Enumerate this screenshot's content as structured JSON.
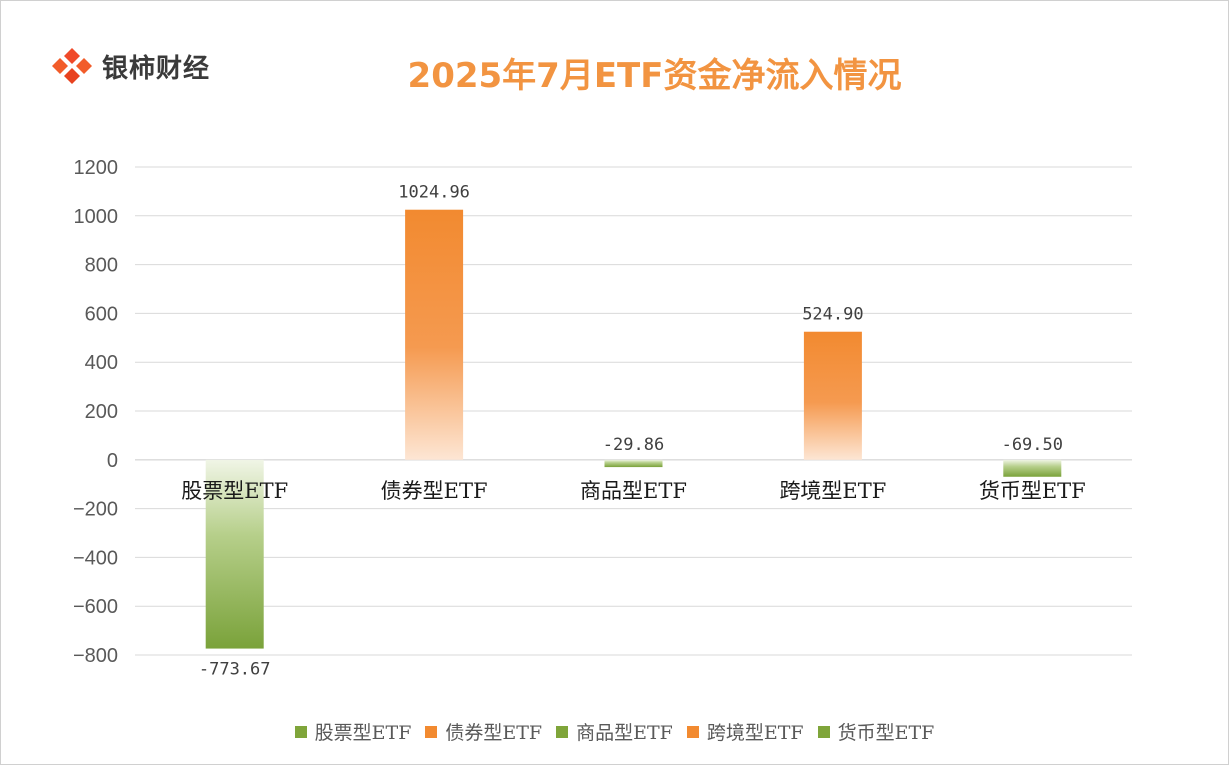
{
  "brand": {
    "name": "银柿财经"
  },
  "colors": {
    "positive": "#f28a30",
    "negative": "#7fa53a",
    "grid": "#d9d9d9",
    "title": "#f29441"
  },
  "chart_data": {
    "type": "bar",
    "title": "2025年7月ETF资金净流入情况",
    "categories": [
      "股票型ETF",
      "债券型ETF",
      "商品型ETF",
      "跨境型ETF",
      "货币型ETF"
    ],
    "values": [
      -773.67,
      1024.96,
      -29.86,
      524.9,
      -69.5
    ],
    "data_labels": [
      "-773.67",
      "1024.96",
      "-29.86",
      "524.90",
      "-69.50"
    ],
    "ylim": [
      -800,
      1200
    ],
    "yticks": [
      1200,
      1000,
      800,
      600,
      400,
      200,
      0,
      -200,
      -400,
      -600,
      -800
    ],
    "ytick_labels": [
      "1200",
      "1000",
      "800",
      "600",
      "400",
      "200",
      "0",
      "−200",
      "−400",
      "−600",
      "−800"
    ],
    "grid": true,
    "legend": {
      "position": "bottom",
      "entries": [
        "股票型ETF",
        "债券型ETF",
        "商品型ETF",
        "跨境型ETF",
        "货币型ETF"
      ]
    }
  }
}
